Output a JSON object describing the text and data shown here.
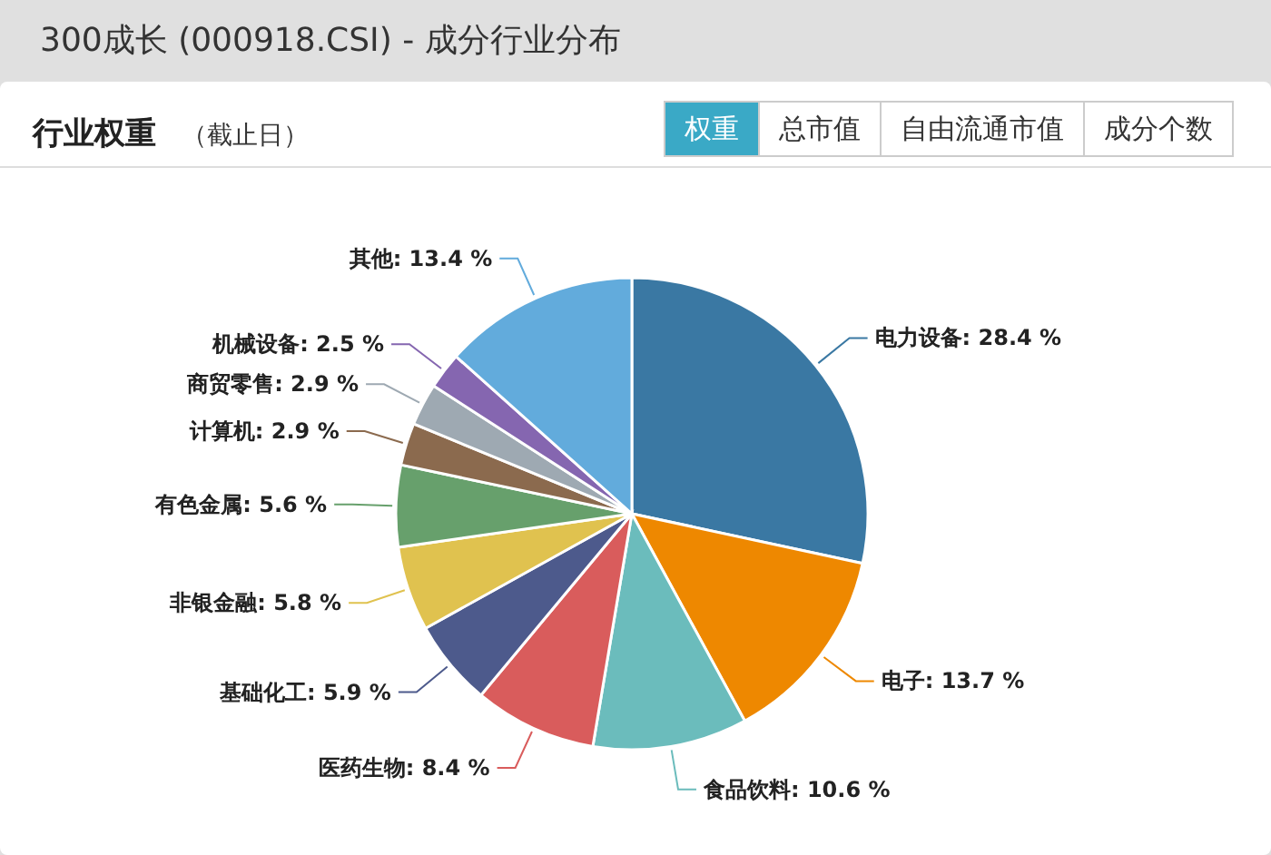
{
  "chart_data": {
    "type": "pie",
    "title": "300成长 (000918.CSI) - 成分行业分布",
    "subtitle": "行业权重",
    "annotations": [
      "（截止日）",
      "权重",
      "总市值",
      "自由流通市值",
      "成分个数"
    ],
    "categories": [
      "电力设备",
      "电子",
      "食品饮料",
      "医药生物",
      "基础化工",
      "非银金融",
      "有色金属",
      "计算机",
      "商贸零售",
      "机械设备",
      "其他"
    ],
    "values": [
      28.4,
      13.7,
      10.6,
      8.4,
      5.9,
      5.8,
      5.6,
      2.9,
      2.9,
      2.5,
      13.4
    ],
    "value_labels": [
      "28.4 %",
      "13.7 %",
      "10.6 %",
      "8.4 %",
      "5.9 %",
      "5.8 %",
      "5.6 %",
      "2.9 %",
      "2.9 %",
      "2.5 %",
      "13.4 %"
    ],
    "colors": [
      "#3a78a3",
      "#ee8800",
      "#6bbcbc",
      "#d95c5c",
      "#4d5a8c",
      "#e0c24f",
      "#67a06c",
      "#8b6a4e",
      "#9ea9b2",
      "#8566b0",
      "#62abdc"
    ]
  }
}
